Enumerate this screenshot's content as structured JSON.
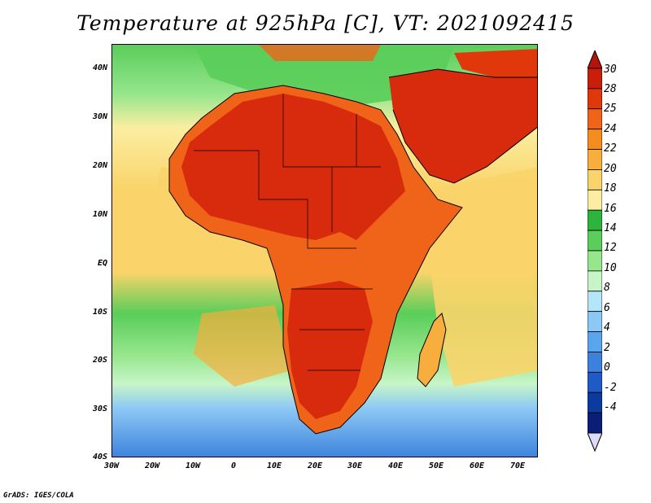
{
  "title": "Temperature at 925hPa [C], VT: 2021092415",
  "footer": "GrADS: IGES/COLA",
  "y_axis": [
    "40N",
    "30N",
    "20N",
    "10N",
    "EQ",
    "10S",
    "20S",
    "30S",
    "40S"
  ],
  "x_axis": [
    "30W",
    "20W",
    "10W",
    "0",
    "10E",
    "20E",
    "30E",
    "40E",
    "50E",
    "60E",
    "70E"
  ],
  "colorbar": {
    "labels": [
      "30",
      "28",
      "25",
      "24",
      "22",
      "20",
      "18",
      "16",
      "14",
      "12",
      "10",
      "8",
      "6",
      "4",
      "2",
      "0",
      "-2",
      "-4"
    ],
    "colors": [
      "#c81e0a",
      "#e0380a",
      "#f0641a",
      "#f58c1e",
      "#f8ae3c",
      "#fad46a",
      "#fbeea2",
      "#2db43c",
      "#5acd5a",
      "#96e68c",
      "#c8f5c8",
      "#b4e6fa",
      "#8cc8f5",
      "#5aa5eb",
      "#3c82dc",
      "#1e5ac8",
      "#0a3ca0",
      "#0a1e78"
    ],
    "top_arrow_color": "#b4140a",
    "bottom_arrow_color": "#dcdcf8"
  },
  "colors": {
    "ocean_warm": "#f8ae3c",
    "ocean_mild": "#fbeea2",
    "ocean_cool": "#5acd5a",
    "ocean_cold": "#5aa5eb",
    "land_hot": "#d82a0c",
    "land_warm": "#f0641a",
    "coast": "#000000"
  }
}
